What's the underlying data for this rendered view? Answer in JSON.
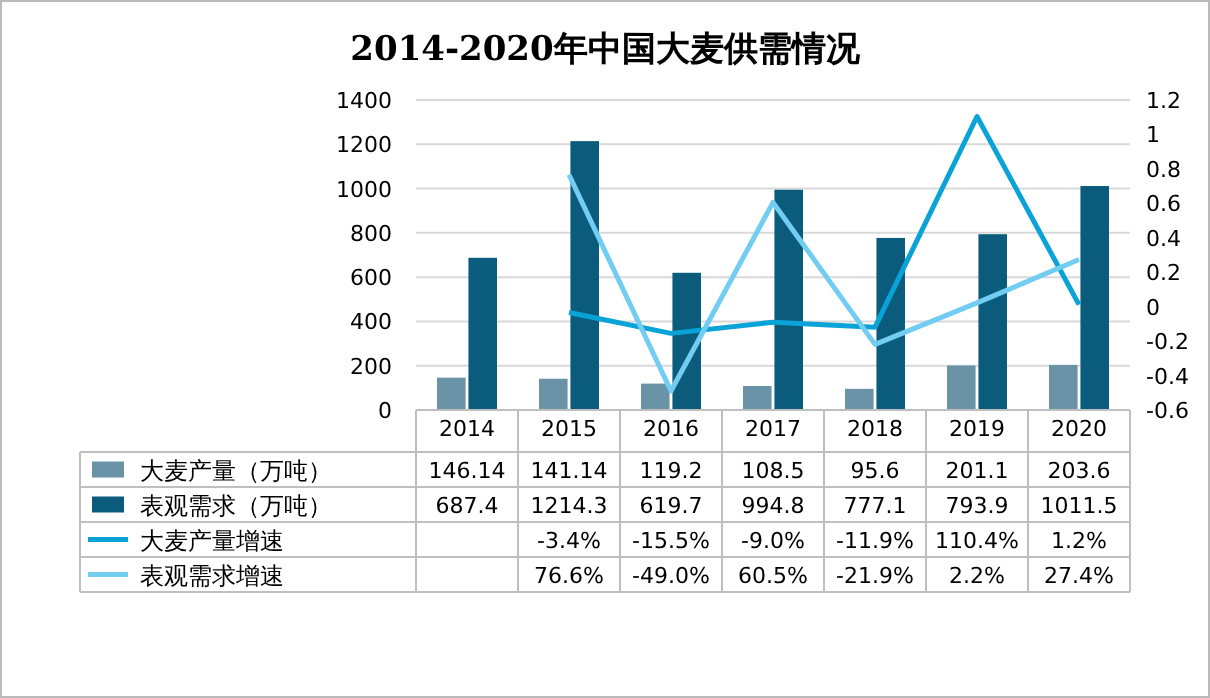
{
  "chart_data": {
    "type": "bar",
    "title": "2014-2020年中国大麦供需情况",
    "categories": [
      "2014",
      "2015",
      "2016",
      "2017",
      "2018",
      "2019",
      "2020"
    ],
    "series": [
      {
        "name": "大麦产量（万吨）",
        "color": "#6b93a7",
        "values": [
          146.14,
          141.14,
          119.2,
          108.5,
          95.6,
          201.1,
          203.6
        ],
        "value_labels": [
          "146.14",
          "141.14",
          "119.2",
          "108.5",
          "95.6",
          "201.1",
          "203.6"
        ]
      },
      {
        "name": "表观需求（万吨）",
        "color": "#0b5c7c",
        "values": [
          687.4,
          1214.3,
          619.7,
          994.8,
          777.1,
          793.9,
          1011.5
        ],
        "value_labels": [
          "687.4",
          "1214.3",
          "619.7",
          "994.8",
          "777.1",
          "793.9",
          "1011.5"
        ]
      },
      {
        "name": "大麦产量增速",
        "type": "line",
        "axis": "y2",
        "color": "#0aa3d8",
        "values": [
          null,
          -0.034,
          -0.155,
          -0.09,
          -0.119,
          1.104,
          0.012
        ],
        "value_labels": [
          null,
          "-3.4%",
          "-15.5%",
          "-9.0%",
          "-11.9%",
          "110.4%",
          "1.2%"
        ]
      },
      {
        "name": "表观需求增速",
        "type": "line",
        "axis": "y2",
        "color": "#72cdf2",
        "values": [
          null,
          0.766,
          -0.49,
          0.605,
          -0.219,
          0.022,
          0.274
        ],
        "value_labels": [
          null,
          "76.6%",
          "-49.0%",
          "60.5%",
          "-21.9%",
          "2.2%",
          "27.4%"
        ]
      }
    ],
    "ylim": [
      0,
      1400
    ],
    "yticks": [
      0,
      200,
      400,
      600,
      800,
      1000,
      1200,
      1400
    ],
    "y2lim": [
      -0.6,
      1.2
    ],
    "y2ticks": [
      -0.6,
      -0.4,
      -0.2,
      0,
      0.2,
      0.4,
      0.6,
      0.8,
      1,
      1.2
    ],
    "grid": "y",
    "legend": "bottom",
    "marker": "none"
  }
}
